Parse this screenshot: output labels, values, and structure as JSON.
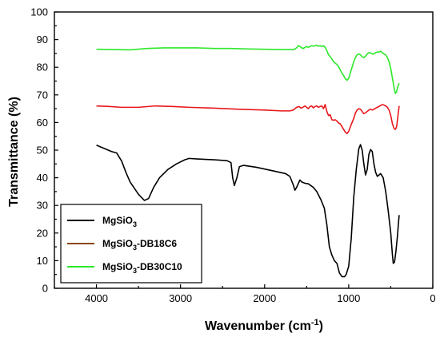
{
  "chart_data": {
    "type": "line",
    "xlabel": "Wavenumber (cm",
    "xlabel_sup": "-1",
    "xlabel_end": ")",
    "ylabel": "Transmittance (%)",
    "xlim": [
      4500,
      0
    ],
    "ylim": [
      0,
      100
    ],
    "x_reversed": true,
    "xticks": [
      4000,
      3000,
      2000,
      1000,
      0
    ],
    "yticks": [
      0,
      10,
      20,
      30,
      40,
      50,
      60,
      70,
      80,
      90,
      100
    ],
    "grid": false,
    "legend_position": "bottom-left",
    "series": [
      {
        "name": "MgSiO3",
        "legend_base": "MgSiO",
        "legend_sub": "3",
        "legend_suffix": "",
        "color": "#000000",
        "points": [
          [
            4000,
            51.8
          ],
          [
            3900,
            50.5
          ],
          [
            3820,
            49.5
          ],
          [
            3760,
            49
          ],
          [
            3700,
            46
          ],
          [
            3650,
            42
          ],
          [
            3600,
            38.5
          ],
          [
            3500,
            34
          ],
          [
            3430,
            31.8
          ],
          [
            3380,
            32.5
          ],
          [
            3320,
            36.5
          ],
          [
            3250,
            40
          ],
          [
            3150,
            43
          ],
          [
            3050,
            45
          ],
          [
            2950,
            46.5
          ],
          [
            2900,
            47
          ],
          [
            2800,
            46.8
          ],
          [
            2600,
            46.5
          ],
          [
            2450,
            46.2
          ],
          [
            2400,
            45.5
          ],
          [
            2380,
            40
          ],
          [
            2360,
            37.2
          ],
          [
            2330,
            40
          ],
          [
            2300,
            44
          ],
          [
            2250,
            44.5
          ],
          [
            2100,
            43.8
          ],
          [
            1900,
            42.5
          ],
          [
            1750,
            41.5
          ],
          [
            1700,
            40.5
          ],
          [
            1660,
            37.5
          ],
          [
            1640,
            35.5
          ],
          [
            1620,
            36.5
          ],
          [
            1580,
            39.2
          ],
          [
            1560,
            38.5
          ],
          [
            1520,
            38
          ],
          [
            1480,
            37.8
          ],
          [
            1420,
            36.5
          ],
          [
            1380,
            35
          ],
          [
            1330,
            32
          ],
          [
            1290,
            29
          ],
          [
            1260,
            23
          ],
          [
            1230,
            15
          ],
          [
            1200,
            12
          ],
          [
            1170,
            10
          ],
          [
            1140,
            9
          ],
          [
            1110,
            5.5
          ],
          [
            1080,
            4.2
          ],
          [
            1050,
            4.2
          ],
          [
            1030,
            5
          ],
          [
            1000,
            8
          ],
          [
            970,
            18
          ],
          [
            940,
            33
          ],
          [
            910,
            43
          ],
          [
            880,
            50.5
          ],
          [
            860,
            52
          ],
          [
            840,
            50
          ],
          [
            820,
            45
          ],
          [
            800,
            41
          ],
          [
            780,
            43
          ],
          [
            760,
            48.5
          ],
          [
            740,
            50.2
          ],
          [
            720,
            49.5
          ],
          [
            700,
            45
          ],
          [
            680,
            42
          ],
          [
            660,
            40.5
          ],
          [
            640,
            41
          ],
          [
            620,
            41.5
          ],
          [
            590,
            40
          ],
          [
            560,
            35
          ],
          [
            530,
            28
          ],
          [
            500,
            20
          ],
          [
            480,
            12
          ],
          [
            470,
            9
          ],
          [
            455,
            9.5
          ],
          [
            440,
            13
          ],
          [
            420,
            19
          ],
          [
            410,
            23
          ],
          [
            400,
            26.5
          ]
        ]
      },
      {
        "name": "MgSiO3-DB18C6",
        "legend_base": "MgSiO",
        "legend_sub": "3",
        "legend_suffix": "-DB18C6",
        "color": "#e8181c",
        "legend_color": "#8b4513",
        "points": [
          [
            4000,
            66
          ],
          [
            3850,
            65.8
          ],
          [
            3700,
            65.5
          ],
          [
            3500,
            65.5
          ],
          [
            3300,
            66
          ],
          [
            3100,
            65.8
          ],
          [
            2900,
            65.5
          ],
          [
            2600,
            65.2
          ],
          [
            2300,
            64.8
          ],
          [
            2000,
            64.5
          ],
          [
            1800,
            64.2
          ],
          [
            1700,
            64.2
          ],
          [
            1660,
            64.5
          ],
          [
            1620,
            65.5
          ],
          [
            1590,
            65.8
          ],
          [
            1570,
            65.2
          ],
          [
            1550,
            65.4
          ],
          [
            1520,
            66
          ],
          [
            1500,
            65.5
          ],
          [
            1480,
            65
          ],
          [
            1460,
            65.8
          ],
          [
            1440,
            66
          ],
          [
            1420,
            65.3
          ],
          [
            1400,
            65.8
          ],
          [
            1380,
            66
          ],
          [
            1360,
            65.5
          ],
          [
            1340,
            65.8
          ],
          [
            1320,
            66
          ],
          [
            1300,
            65
          ],
          [
            1280,
            66.5
          ],
          [
            1260,
            64
          ],
          [
            1240,
            62.5
          ],
          [
            1220,
            62.8
          ],
          [
            1200,
            61
          ],
          [
            1180,
            60.8
          ],
          [
            1160,
            61
          ],
          [
            1140,
            60.5
          ],
          [
            1120,
            59.8
          ],
          [
            1100,
            59.5
          ],
          [
            1080,
            58.5
          ],
          [
            1060,
            57.5
          ],
          [
            1040,
            56.5
          ],
          [
            1020,
            56
          ],
          [
            1000,
            56.8
          ],
          [
            980,
            58.5
          ],
          [
            960,
            60
          ],
          [
            940,
            61.5
          ],
          [
            920,
            63.5
          ],
          [
            900,
            64.5
          ],
          [
            880,
            65
          ],
          [
            860,
            64.8
          ],
          [
            840,
            64
          ],
          [
            820,
            63.2
          ],
          [
            800,
            63.5
          ],
          [
            780,
            64
          ],
          [
            760,
            64.5
          ],
          [
            740,
            64.8
          ],
          [
            720,
            64.5
          ],
          [
            700,
            64.8
          ],
          [
            680,
            65.2
          ],
          [
            660,
            65.5
          ],
          [
            640,
            65.8
          ],
          [
            620,
            66.2
          ],
          [
            600,
            66.5
          ],
          [
            580,
            66.3
          ],
          [
            560,
            66
          ],
          [
            540,
            65.5
          ],
          [
            520,
            64.5
          ],
          [
            500,
            62.5
          ],
          [
            480,
            59.5
          ],
          [
            460,
            57.8
          ],
          [
            445,
            57.5
          ],
          [
            430,
            58.5
          ],
          [
            420,
            61
          ],
          [
            410,
            63.5
          ],
          [
            400,
            66
          ]
        ]
      },
      {
        "name": "MgSiO3-DB30C10",
        "legend_base": "MgSiO",
        "legend_sub": "3",
        "legend_suffix": "-DB30C10",
        "color": "#2ee82a",
        "points": [
          [
            4000,
            86.5
          ],
          [
            3800,
            86.4
          ],
          [
            3600,
            86.3
          ],
          [
            3400,
            86.8
          ],
          [
            3200,
            87
          ],
          [
            3000,
            87
          ],
          [
            2800,
            87
          ],
          [
            2600,
            86.8
          ],
          [
            2400,
            86.8
          ],
          [
            2200,
            86.6
          ],
          [
            2000,
            86.5
          ],
          [
            1800,
            86.4
          ],
          [
            1650,
            86.4
          ],
          [
            1620,
            87
          ],
          [
            1600,
            87.8
          ],
          [
            1580,
            87.5
          ],
          [
            1560,
            87
          ],
          [
            1540,
            86.8
          ],
          [
            1520,
            87.2
          ],
          [
            1500,
            87.5
          ],
          [
            1480,
            87.2
          ],
          [
            1460,
            87.5
          ],
          [
            1440,
            87.8
          ],
          [
            1420,
            87.6
          ],
          [
            1400,
            87.8
          ],
          [
            1380,
            88
          ],
          [
            1360,
            87.6
          ],
          [
            1340,
            87.8
          ],
          [
            1320,
            87.5
          ],
          [
            1300,
            87.8
          ],
          [
            1280,
            87.2
          ],
          [
            1260,
            86
          ],
          [
            1240,
            84.5
          ],
          [
            1220,
            83.8
          ],
          [
            1200,
            83
          ],
          [
            1180,
            82
          ],
          [
            1160,
            81.5
          ],
          [
            1140,
            81
          ],
          [
            1120,
            80.2
          ],
          [
            1100,
            79
          ],
          [
            1080,
            77.8
          ],
          [
            1060,
            77
          ],
          [
            1040,
            75.8
          ],
          [
            1020,
            75.3
          ],
          [
            1000,
            76
          ],
          [
            980,
            78
          ],
          [
            960,
            80
          ],
          [
            940,
            82
          ],
          [
            920,
            83.5
          ],
          [
            900,
            84.5
          ],
          [
            880,
            84.8
          ],
          [
            860,
            84.5
          ],
          [
            840,
            83.8
          ],
          [
            820,
            83.5
          ],
          [
            800,
            84
          ],
          [
            780,
            84.8
          ],
          [
            760,
            85.3
          ],
          [
            740,
            85.2
          ],
          [
            720,
            84.8
          ],
          [
            700,
            84.8
          ],
          [
            680,
            85.3
          ],
          [
            660,
            85.5
          ],
          [
            640,
            85.5
          ],
          [
            620,
            85.8
          ],
          [
            600,
            85.3
          ],
          [
            580,
            84.8
          ],
          [
            560,
            84.5
          ],
          [
            540,
            83.5
          ],
          [
            520,
            82
          ],
          [
            500,
            79.5
          ],
          [
            480,
            76
          ],
          [
            460,
            72.5
          ],
          [
            445,
            70.5
          ],
          [
            430,
            71.2
          ],
          [
            420,
            72.5
          ],
          [
            410,
            73.5
          ],
          [
            400,
            74.2
          ]
        ]
      }
    ]
  }
}
